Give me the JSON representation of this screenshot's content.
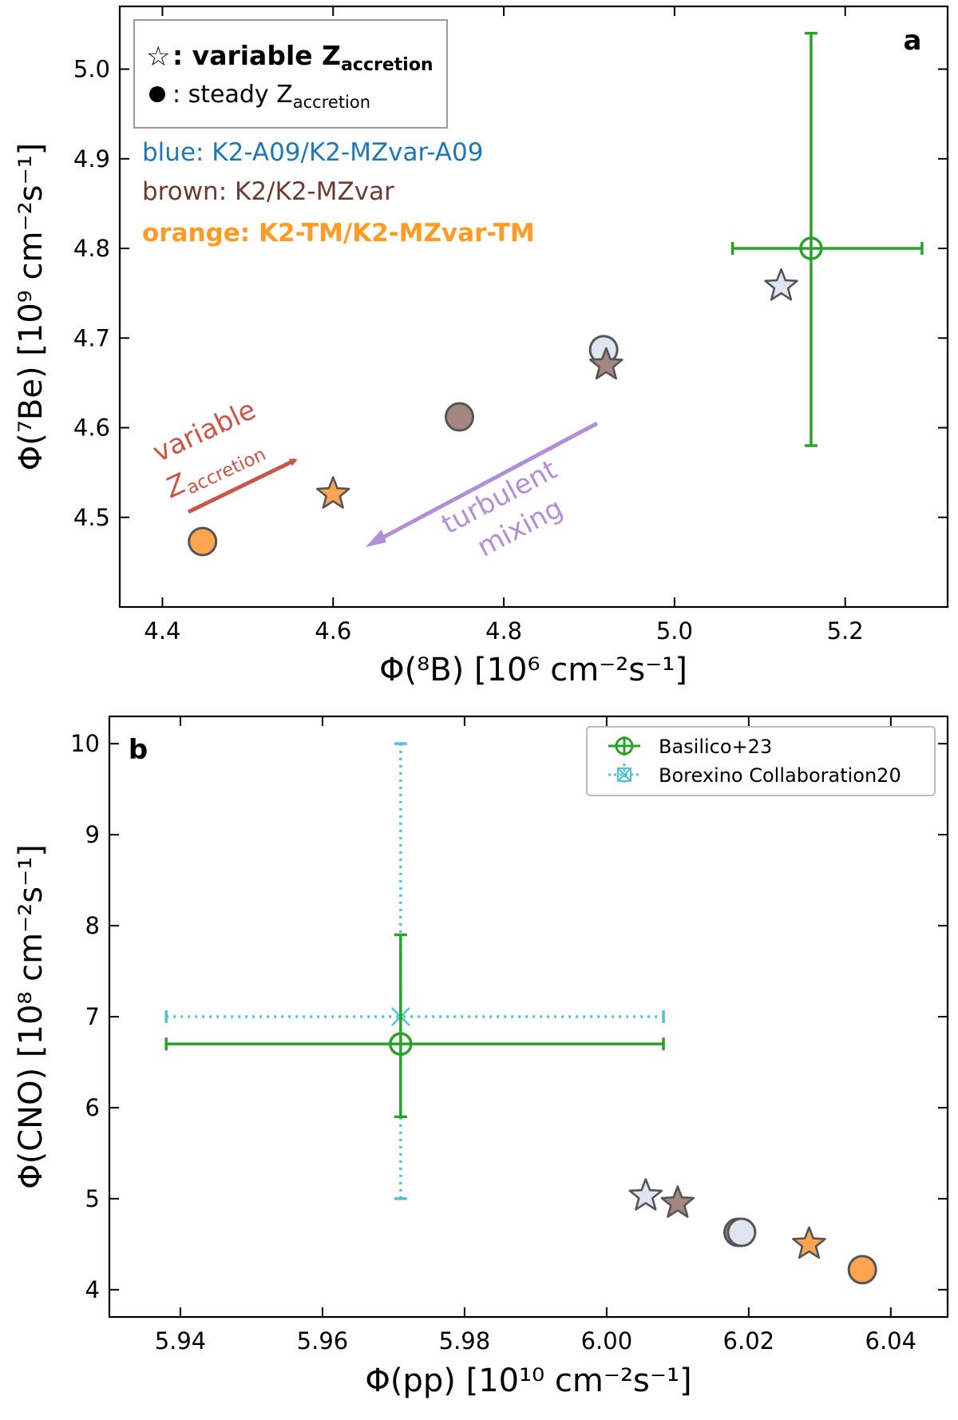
{
  "chart_data": [
    {
      "type": "scatter",
      "panel_label": "a",
      "xlabel": "Φ(⁸B) [10⁶ cm⁻²s⁻¹]",
      "ylabel": "Φ(⁷Be) [10⁹ cm⁻²s⁻¹]",
      "xlim": [
        4.35,
        5.32
      ],
      "ylim": [
        4.4,
        5.07
      ],
      "xticks": [
        "4.4",
        "4.6",
        "4.8",
        "5.0",
        "5.2"
      ],
      "yticks": [
        "4.5",
        "4.6",
        "4.7",
        "4.8",
        "4.9",
        "5.0"
      ],
      "grid": false,
      "legend_box": {
        "star_line": ": variable Z",
        "star_sub": "accretion",
        "circle_line": ": steady Z",
        "circle_sub": "accretion"
      },
      "color_notes": [
        {
          "text": "blue: K2-A09/K2-MZvar-A09",
          "color": "#1f77b4",
          "bold": false
        },
        {
          "text": "brown: K2/K2-MZvar",
          "color": "#6b3a33",
          "bold": false
        },
        {
          "text": "orange: K2-TM/K2-MZvar-TM",
          "color": "#ff9b26",
          "bold": true
        }
      ],
      "annotations": [
        {
          "id": "variable",
          "line1": "variable",
          "line2": "Z",
          "sub": "accretion",
          "color": "#c8574a"
        },
        {
          "id": "turbulent",
          "line1": "turbulent",
          "line2": "mixing",
          "color": "#b18fd6"
        }
      ],
      "models": [
        {
          "marker": "circle",
          "family": "blue",
          "x": 4.917,
          "y": 4.687
        },
        {
          "marker": "star",
          "family": "blue",
          "x": 5.125,
          "y": 4.758
        },
        {
          "marker": "circle",
          "family": "brown",
          "x": 4.748,
          "y": 4.612
        },
        {
          "marker": "star",
          "family": "brown",
          "x": 4.92,
          "y": 4.67
        },
        {
          "marker": "circle",
          "family": "orange",
          "x": 4.447,
          "y": 4.473
        },
        {
          "marker": "star",
          "family": "orange",
          "x": 4.6,
          "y": 4.526
        }
      ],
      "observations": [
        {
          "name": "Basilico+23",
          "x": 5.16,
          "xerr": [
            5.068,
            5.29
          ],
          "y": 4.8,
          "yerr": [
            4.58,
            5.04
          ],
          "color": "#2ca02c",
          "style": "solid"
        }
      ]
    },
    {
      "type": "scatter",
      "panel_label": "b",
      "xlabel": "Φ(pp) [10¹⁰ cm⁻²s⁻¹]",
      "ylabel": "Φ(CNO) [10⁸ cm⁻²s⁻¹]",
      "xlim": [
        5.93,
        6.048
      ],
      "ylim": [
        3.7,
        10.3
      ],
      "xticks": [
        "5.94",
        "5.96",
        "5.98",
        "6.00",
        "6.02",
        "6.04"
      ],
      "yticks": [
        "4",
        "5",
        "6",
        "7",
        "8",
        "9",
        "10"
      ],
      "grid": false,
      "legend": {
        "position": "top-right",
        "entries": [
          "Basilico+23",
          "Borexino Collaboration20"
        ]
      },
      "models": [
        {
          "marker": "star",
          "family": "blue",
          "x": 6.0055,
          "y": 5.03
        },
        {
          "marker": "star",
          "family": "brown",
          "x": 6.01,
          "y": 4.95
        },
        {
          "marker": "circle",
          "family": "brown",
          "x": 6.0185,
          "y": 4.63
        },
        {
          "marker": "circle",
          "family": "blue",
          "x": 6.019,
          "y": 4.63
        },
        {
          "marker": "star",
          "family": "orange",
          "x": 6.0285,
          "y": 4.5
        },
        {
          "marker": "circle",
          "family": "orange",
          "x": 6.036,
          "y": 4.22
        }
      ],
      "observations": [
        {
          "name": "Borexino Collaboration20",
          "x": 5.971,
          "xerr": [
            5.938,
            6.008
          ],
          "y": 7.0,
          "yerr": [
            5.0,
            10.0
          ],
          "color": "#4fc4d4",
          "style": "dotted"
        },
        {
          "name": "Basilico+23",
          "x": 5.971,
          "xerr": [
            5.938,
            6.008
          ],
          "y": 6.7,
          "yerr": [
            5.9,
            7.9
          ],
          "color": "#2ca02c",
          "style": "solid"
        }
      ]
    }
  ],
  "colors": {
    "blue": "#dde6f0",
    "brown": "#a58782",
    "orange": "#ffa54f",
    "marker_edge": "#555555",
    "green": "#2ca02c",
    "cyan": "#4fc4d4"
  }
}
